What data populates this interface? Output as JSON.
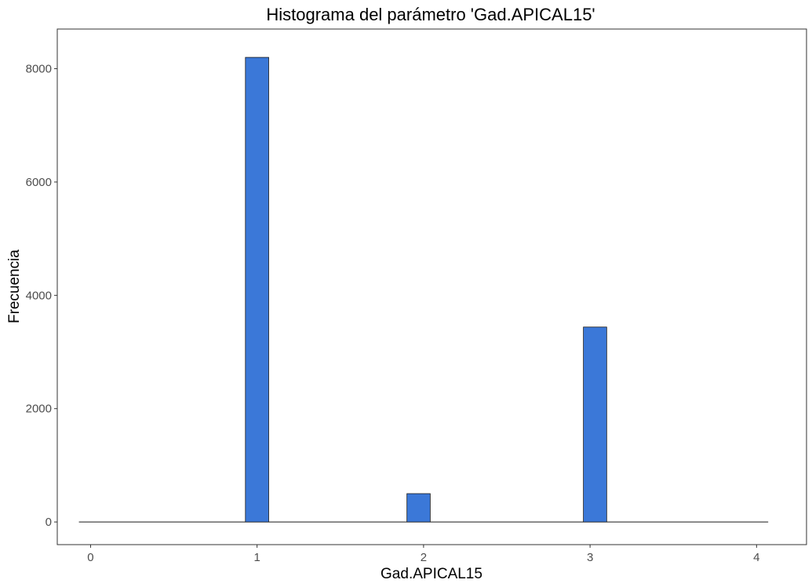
{
  "chart_data": {
    "type": "bar",
    "title": "Histograma del parámetro 'Gad.APICAL15'",
    "xlabel": "Gad.APICAL15",
    "ylabel": "Frecuencia",
    "xlim": [
      -0.2,
      4.3
    ],
    "ylim": [
      -400,
      8700
    ],
    "x_ticks": [
      0,
      1,
      2,
      3,
      4
    ],
    "y_ticks": [
      0,
      2000,
      4000,
      6000,
      8000
    ],
    "bin_width": 0.14,
    "baseline_range": [
      -0.07,
      4.07
    ],
    "bins": [
      {
        "x": 1.0,
        "count": 8200
      },
      {
        "x": 1.97,
        "count": 500
      },
      {
        "x": 3.03,
        "count": 3440
      }
    ],
    "grid": false,
    "legend": "none",
    "bar_color": "#3b78d8",
    "bar_edge_color": "#1a1a1a"
  }
}
